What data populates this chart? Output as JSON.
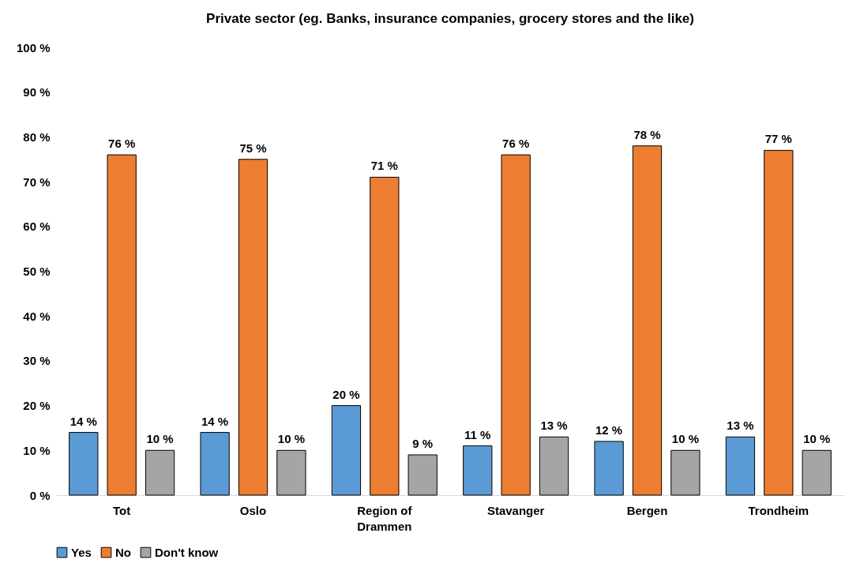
{
  "chart_data": {
    "type": "bar",
    "title": "Private sector (eg. Banks, insurance companies, grocery stores and the like)",
    "categories": [
      "Tot",
      "Oslo",
      "Region of Drammen",
      "Stavanger",
      "Bergen",
      "Trondheim"
    ],
    "series": [
      {
        "name": "Yes",
        "color": "#5b9bd5",
        "values": [
          14,
          14,
          20,
          11,
          12,
          13
        ],
        "value_labels": [
          "14 %",
          "14 %",
          "20 %",
          "11 %",
          "12 %",
          "13 %"
        ]
      },
      {
        "name": "No",
        "color": "#ed7d31",
        "values": [
          76,
          75,
          71,
          76,
          78,
          77
        ],
        "value_labels": [
          "76 %",
          "75 %",
          "71 %",
          "76 %",
          "78 %",
          "77 %"
        ]
      },
      {
        "name": "Don't know",
        "color": "#a5a5a5",
        "values": [
          10,
          10,
          9,
          13,
          10,
          10
        ],
        "value_labels": [
          "10 %",
          "10 %",
          "9 %",
          "13 %",
          "10 %",
          "10 %"
        ]
      }
    ],
    "ylim": [
      0,
      100
    ],
    "yticks": [
      {
        "value": 0,
        "label": "0 %"
      },
      {
        "value": 10,
        "label": "10 %"
      },
      {
        "value": 20,
        "label": "20 %"
      },
      {
        "value": 30,
        "label": "30 %"
      },
      {
        "value": 40,
        "label": "40 %"
      },
      {
        "value": 50,
        "label": "50 %"
      },
      {
        "value": 60,
        "label": "60 %"
      },
      {
        "value": 70,
        "label": "70 %"
      },
      {
        "value": 80,
        "label": "80 %"
      },
      {
        "value": 90,
        "label": "90 %"
      },
      {
        "value": 100,
        "label": "100 %"
      }
    ],
    "grid": false,
    "legend": "bottom"
  }
}
